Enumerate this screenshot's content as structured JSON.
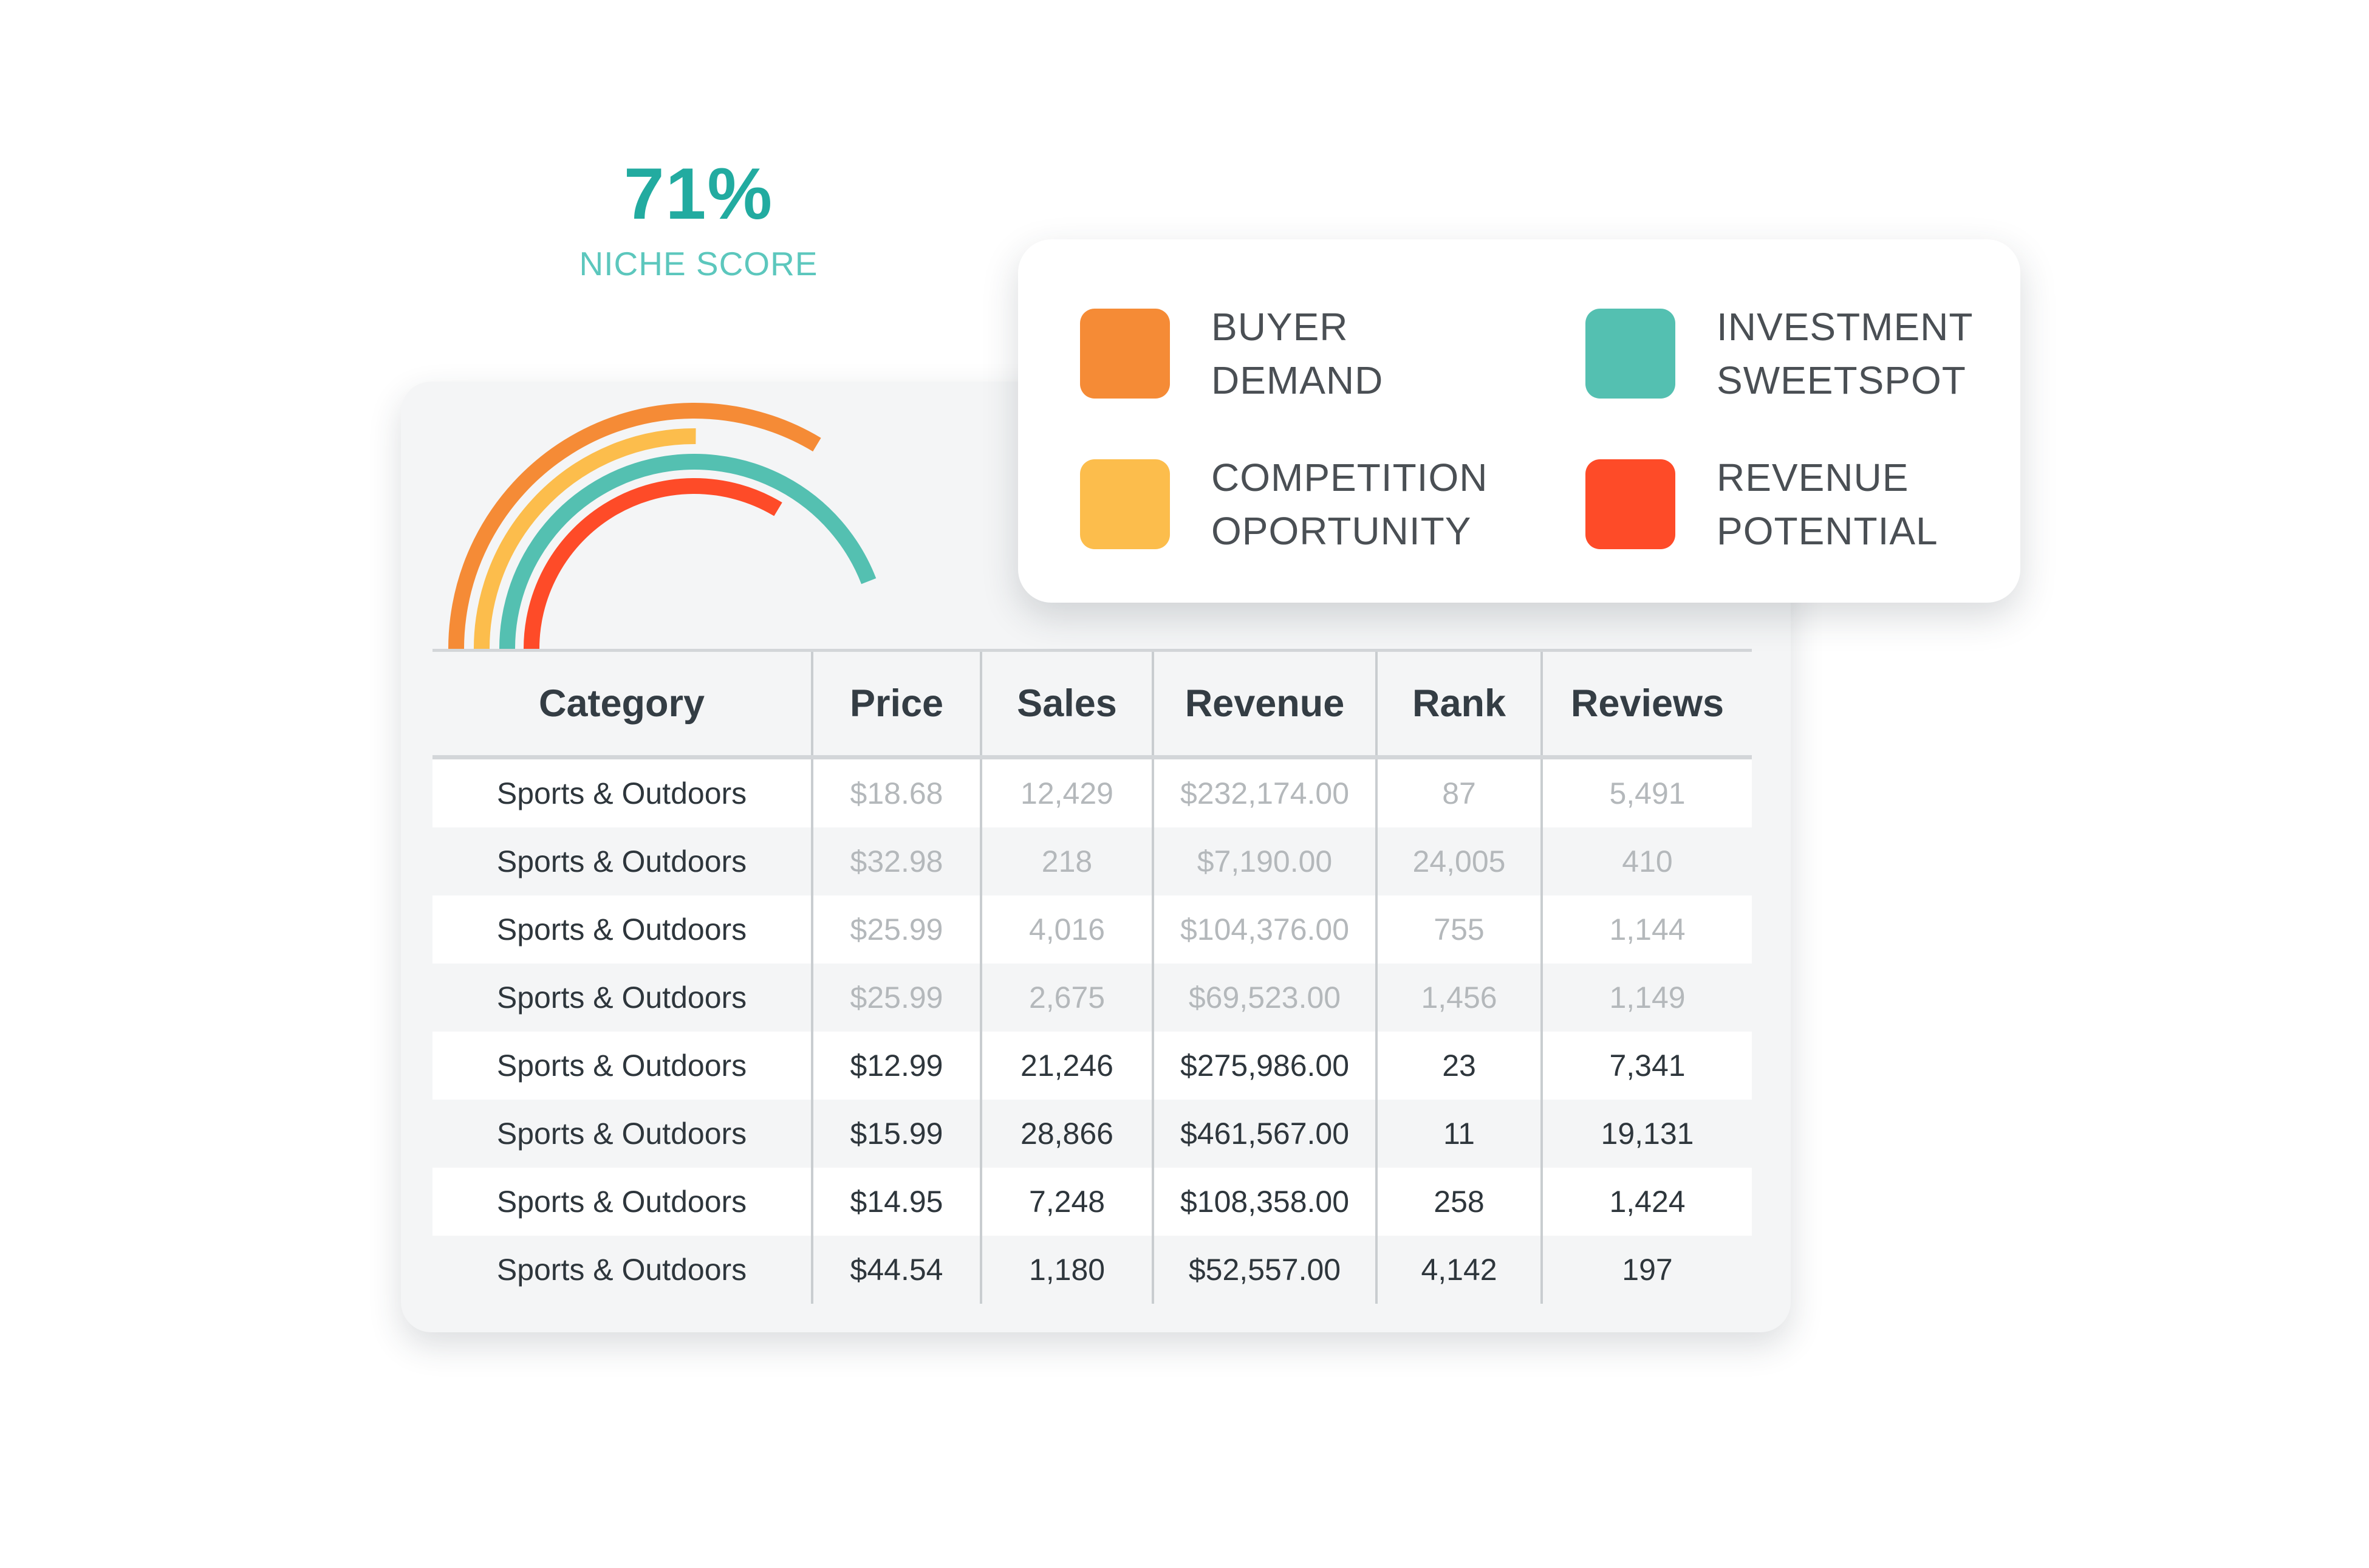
{
  "colors": {
    "buyer_demand": "#f58b36",
    "competition": "#fcbd4c",
    "investment": "#54c0b1",
    "revenue": "#fe4b28",
    "teal_text": "#22aba0"
  },
  "niche_score": {
    "value": "71%",
    "label": "NICHE SCORE",
    "arcs": [
      {
        "name": "buyer-demand",
        "color": "#f58b36",
        "fraction": 0.7
      },
      {
        "name": "competition",
        "color": "#fcbd4c",
        "fraction": 0.53
      },
      {
        "name": "investment",
        "color": "#54c0b1",
        "fraction": 0.91
      },
      {
        "name": "revenue",
        "color": "#fe4b28",
        "fraction": 0.7
      }
    ]
  },
  "legend": [
    {
      "line1": "BUYER",
      "line2": "DEMAND",
      "color": "#f58b36"
    },
    {
      "line1": "INVESTMENT",
      "line2": "SWEETSPOT",
      "color": "#54c0b1"
    },
    {
      "line1": "COMPETITION",
      "line2": "OPORTUNITY",
      "color": "#fcbd4c"
    },
    {
      "line1": "REVENUE",
      "line2": "POTENTIAL",
      "color": "#fe4b28"
    }
  ],
  "table": {
    "headers": [
      "Category",
      "Price",
      "Sales",
      "Revenue",
      "Rank",
      "Reviews"
    ],
    "rows": [
      {
        "category": "Sports & Outdoors",
        "price": "$18.68",
        "sales": "12,429",
        "revenue": "$232,174.00",
        "rank": "87",
        "reviews": "5,491",
        "muted": true
      },
      {
        "category": "Sports & Outdoors",
        "price": "$32.98",
        "sales": "218",
        "revenue": "$7,190.00",
        "rank": "24,005",
        "reviews": "410",
        "muted": true
      },
      {
        "category": "Sports & Outdoors",
        "price": "$25.99",
        "sales": "4,016",
        "revenue": "$104,376.00",
        "rank": "755",
        "reviews": "1,144",
        "muted": true
      },
      {
        "category": "Sports & Outdoors",
        "price": "$25.99",
        "sales": "2,675",
        "revenue": "$69,523.00",
        "rank": "1,456",
        "reviews": "1,149",
        "muted": true
      },
      {
        "category": "Sports & Outdoors",
        "price": "$12.99",
        "sales": "21,246",
        "revenue": "$275,986.00",
        "rank": "23",
        "reviews": "7,341",
        "muted": false
      },
      {
        "category": "Sports & Outdoors",
        "price": "$15.99",
        "sales": "28,866",
        "revenue": "$461,567.00",
        "rank": "11",
        "reviews": "19,131",
        "muted": false
      },
      {
        "category": "Sports & Outdoors",
        "price": "$14.95",
        "sales": "7,248",
        "revenue": "$108,358.00",
        "rank": "258",
        "reviews": "1,424",
        "muted": false
      },
      {
        "category": "Sports & Outdoors",
        "price": "$44.54",
        "sales": "1,180",
        "revenue": "$52,557.00",
        "rank": "4,142",
        "reviews": "197",
        "muted": false
      }
    ]
  }
}
